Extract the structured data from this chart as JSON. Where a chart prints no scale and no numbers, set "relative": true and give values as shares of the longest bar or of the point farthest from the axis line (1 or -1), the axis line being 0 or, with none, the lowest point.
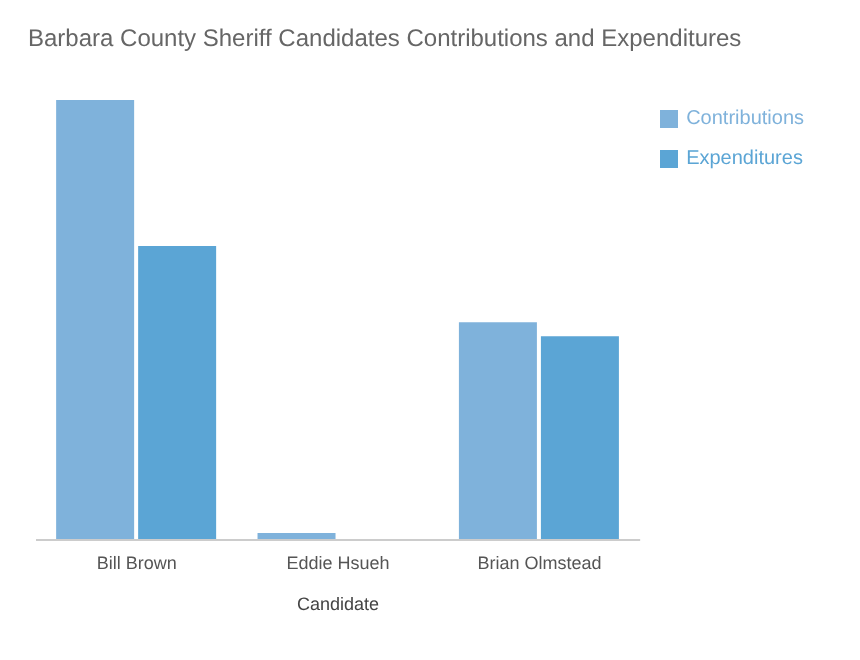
{
  "chart_data": {
    "type": "bar",
    "title": "Barbara County Sheriff Candidates Contributions and Expenditures",
    "xlabel": "Candidate",
    "categories": [
      "Bill Brown",
      "Eddie Hsueh",
      "Brian Olmstead"
    ],
    "relative": true,
    "legend": "right",
    "series": [
      {
        "name": "Contributions",
        "color": "#7fb2db",
        "values": [
          1,
          0.016,
          0.495
        ]
      },
      {
        "name": "Expenditures",
        "color": "#5ba5d5",
        "values": [
          0.668,
          0,
          0.463
        ]
      }
    ]
  }
}
